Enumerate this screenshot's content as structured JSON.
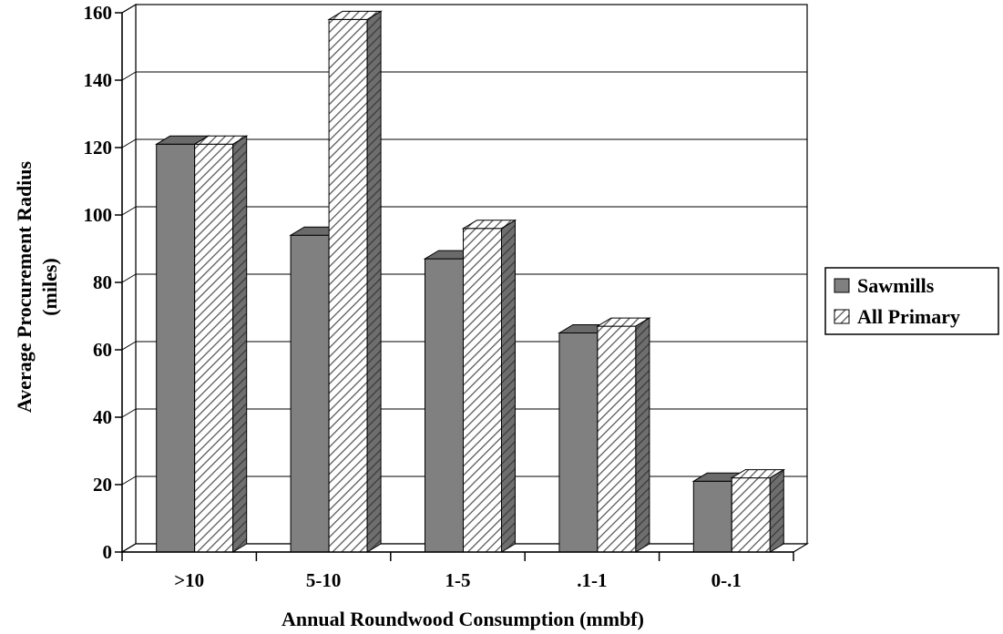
{
  "chart_data": {
    "type": "bar",
    "title": "",
    "xlabel": "Annual Roundwood Consumption (mmbf)",
    "ylabel_line1": "Average Procurement Radius",
    "ylabel_line2": "(miles)",
    "categories": [
      ">10",
      "5-10",
      "1-5",
      ".1-1",
      "0-.1"
    ],
    "series": [
      {
        "name": "Sawmills",
        "values": [
          121,
          94,
          87,
          65,
          21
        ],
        "color": "#808080",
        "pattern": "solid"
      },
      {
        "name": "All Primary",
        "values": [
          121,
          158,
          96,
          67,
          22
        ],
        "color": "#ffffff",
        "pattern": "diagonal-hatch"
      }
    ],
    "ylim": [
      0,
      160
    ],
    "yticks": [
      0,
      20,
      40,
      60,
      80,
      100,
      120,
      140,
      160
    ],
    "grid": true,
    "legend_position": "right"
  }
}
